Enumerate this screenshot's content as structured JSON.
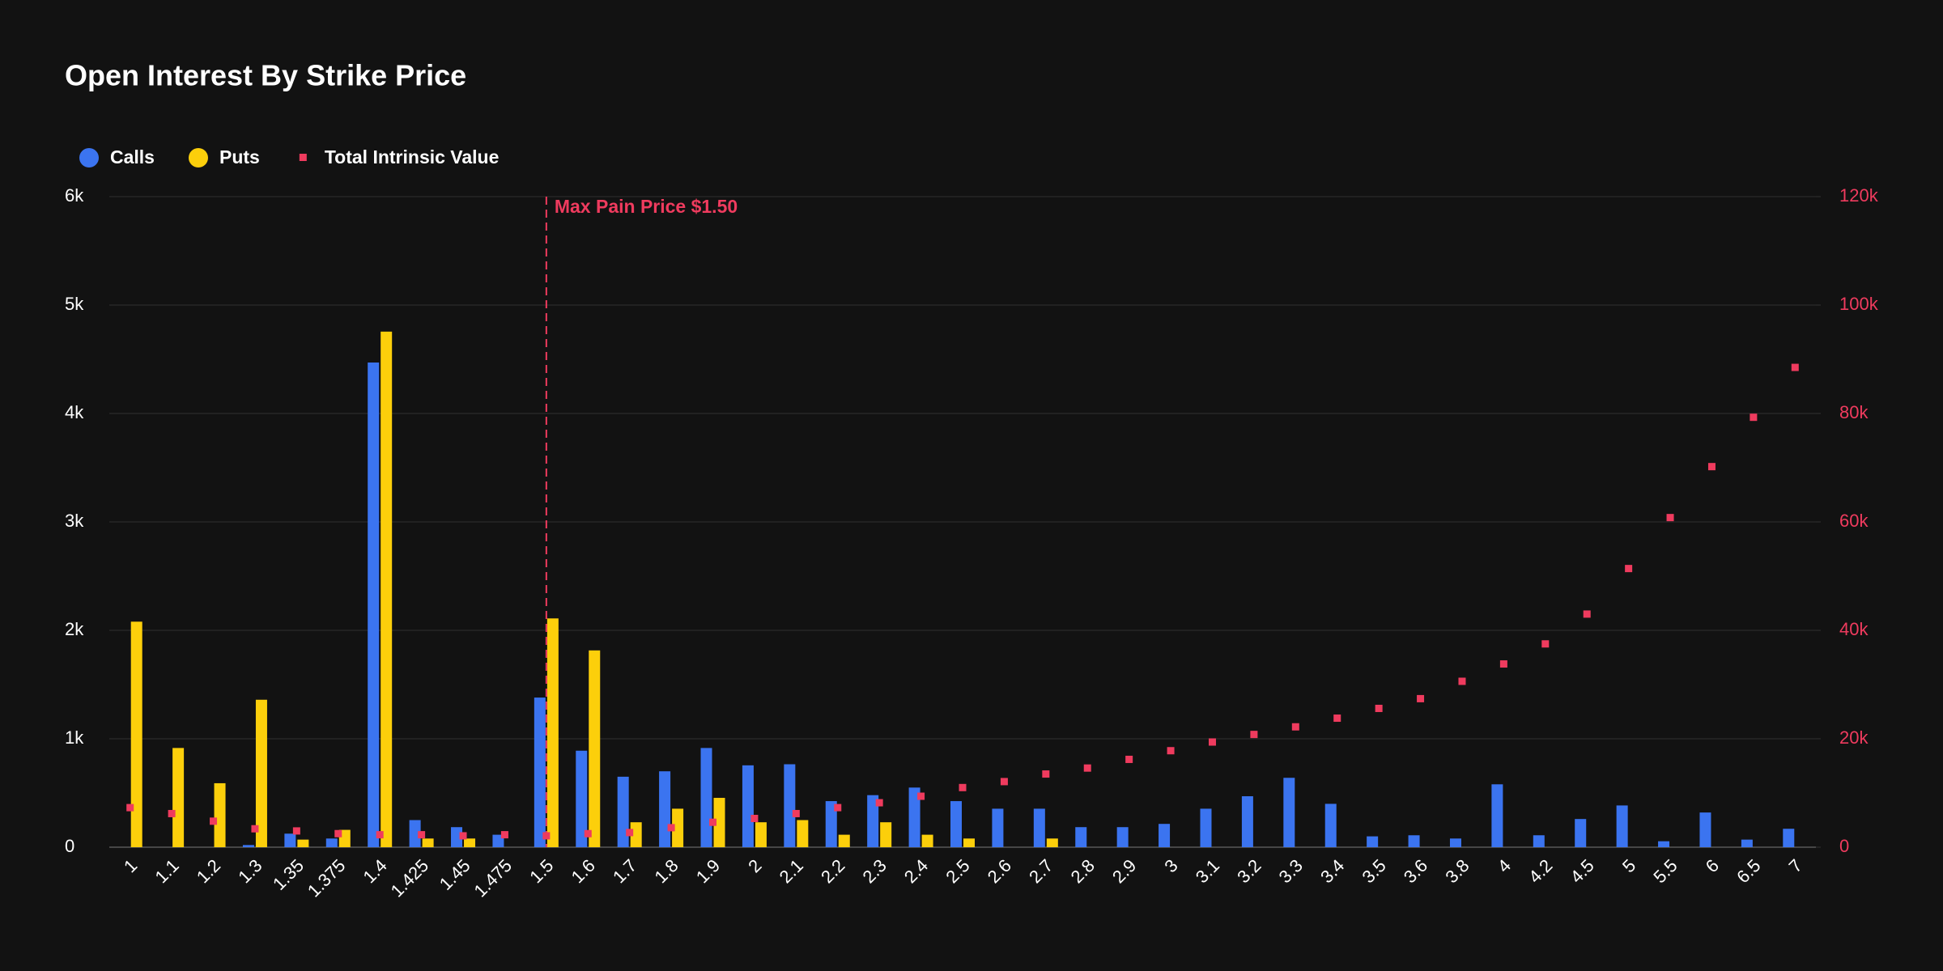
{
  "chart_data": {
    "type": "bar",
    "title": "Open Interest By Strike Price",
    "categories": [
      "1",
      "1.1",
      "1.2",
      "1.3",
      "1.35",
      "1.375",
      "1.4",
      "1.425",
      "1.45",
      "1.475",
      "1.5",
      "1.6",
      "1.7",
      "1.8",
      "1.9",
      "2",
      "2.1",
      "2.2",
      "2.3",
      "2.4",
      "2.5",
      "2.6",
      "2.7",
      "2.8",
      "2.9",
      "3",
      "3.1",
      "3.2",
      "3.3",
      "3.4",
      "3.5",
      "3.6",
      "3.8",
      "4",
      "4.2",
      "4.5",
      "5",
      "5.5",
      "6",
      "6.5",
      "7"
    ],
    "series": [
      {
        "name": "Calls",
        "color": "#3b74f0",
        "values": [
          0,
          0,
          0,
          20,
          125,
          80,
          4470,
          250,
          185,
          115,
          1380,
          890,
          650,
          700,
          915,
          755,
          765,
          425,
          480,
          550,
          425,
          355,
          355,
          185,
          185,
          215,
          355,
          470,
          640,
          400,
          100,
          110,
          80,
          580,
          110,
          260,
          385,
          55,
          320,
          70,
          170
        ]
      },
      {
        "name": "Puts",
        "color": "#fccf0b",
        "values": [
          2080,
          915,
          590,
          1360,
          70,
          160,
          4755,
          80,
          80,
          0,
          2110,
          1815,
          230,
          355,
          455,
          230,
          250,
          115,
          230,
          115,
          80,
          0,
          80,
          0,
          0,
          0,
          0,
          0,
          0,
          0,
          0,
          0,
          0,
          0,
          0,
          0,
          0,
          0,
          0,
          0,
          0
        ]
      },
      {
        "name": "Total Intrinsic Value",
        "color": "#ef3b5e",
        "type": "scatter",
        "axis": "y2",
        "values": [
          7300,
          6200,
          4800,
          3400,
          3000,
          2500,
          2300,
          2300,
          2100,
          2300,
          2100,
          2500,
          2700,
          3600,
          4600,
          5300,
          6200,
          7300,
          8200,
          9400,
          11000,
          12100,
          13500,
          14600,
          16200,
          17800,
          19400,
          20800,
          22200,
          23800,
          25600,
          27400,
          30600,
          33800,
          37500,
          43000,
          51400,
          60800,
          70200,
          79300,
          88500
        ]
      }
    ],
    "ylim": [
      0,
      6000
    ],
    "yticks": [
      0,
      {
        "value": 1000,
        "label": "1k"
      },
      {
        "value": 2000,
        "label": "2k"
      },
      {
        "value": 3000,
        "label": "3k"
      },
      {
        "value": 4000,
        "label": "4k"
      },
      {
        "value": 5000,
        "label": "5k"
      },
      {
        "value": 6000,
        "label": "6k"
      }
    ],
    "y2lim": [
      0,
      120000
    ],
    "y2ticks": [
      0,
      {
        "value": 20000,
        "label": "20k"
      },
      {
        "value": 40000,
        "label": "40k"
      },
      {
        "value": 60000,
        "label": "60k"
      },
      {
        "value": 80000,
        "label": "80k"
      },
      {
        "value": 100000,
        "label": "100k"
      },
      {
        "value": 120000,
        "label": "120k"
      }
    ],
    "grid": true,
    "legend": "top-left",
    "annotation": {
      "text": "Max Pain Price $1.50",
      "x": "1.5"
    }
  }
}
